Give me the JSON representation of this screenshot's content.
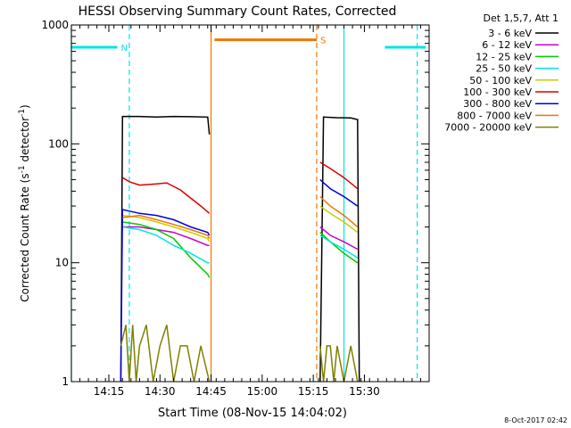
{
  "chart_data": {
    "type": "line",
    "title": "HESSI Observing Summary Count Rates, Corrected",
    "xlabel": "Start Time (08-Nov-15 14:04:02)",
    "ylabel_main": "Corrected Count Rate (s",
    "ylabel_sup1": "-1",
    "ylabel_mid": " detector",
    "ylabel_sup2": "-1",
    "ylabel_end": ")",
    "yscale": "log",
    "ylim": [
      1,
      1000
    ],
    "xlim_minutes": [
      0,
      105
    ],
    "x_ticks": [
      {
        "label": "14:15",
        "minute": 11
      },
      {
        "label": "14:30",
        "minute": 26
      },
      {
        "label": "14:45",
        "minute": 41
      },
      {
        "label": "15:00",
        "minute": 56
      },
      {
        "label": "15:15",
        "minute": 71
      },
      {
        "label": "15:30",
        "minute": 86
      }
    ],
    "y_ticks": [
      {
        "label": "1",
        "value": 1
      },
      {
        "label": "10",
        "value": 10
      },
      {
        "label": "100",
        "value": 100
      },
      {
        "label": "1000",
        "value": 1000
      }
    ],
    "legend_title": "Det 1,5,7, Att 1",
    "legend_placement": "right, outside plot",
    "series": [
      {
        "name": "3 - 6 keV",
        "color": "#000000",
        "segments": [
          {
            "x": [
              14.5,
              15,
              20,
              25,
              30,
              35,
              40,
              40.5
            ],
            "y": [
              1,
              170,
              170,
              168,
              170,
              169,
              168,
              120
            ]
          },
          {
            "x": [
              73,
              74,
              78,
              82,
              84,
              84.5
            ],
            "y": [
              1,
              168,
              166,
              165,
              160,
              1
            ]
          }
        ]
      },
      {
        "name": "6 - 12 keV",
        "color": "#cc00cc",
        "segments": [
          {
            "x": [
              15,
              20,
              25,
              30,
              35,
              40,
              40.5
            ],
            "y": [
              20,
              20,
              19,
              18,
              16,
              14,
              14
            ]
          },
          {
            "x": [
              73,
              76,
              80,
              84
            ],
            "y": [
              20,
              17,
              15,
              13
            ]
          }
        ]
      },
      {
        "name": "12 - 25 keV",
        "color": "#00cc00",
        "segments": [
          {
            "x": [
              15,
              20,
              25,
              30,
              35,
              40,
              40.5
            ],
            "y": [
              22,
              21,
              19,
              16,
              11,
              8,
              7.5
            ]
          },
          {
            "x": [
              73,
              76,
              80,
              84
            ],
            "y": [
              18,
              15,
              12,
              10
            ]
          }
        ]
      },
      {
        "name": "25 - 50 keV",
        "color": "#00e5e5",
        "segments": [
          {
            "x": [
              15,
              20,
              25,
              30,
              35,
              40,
              40.5
            ],
            "y": [
              20,
              19,
              17,
              14,
              12,
              10,
              10
            ]
          },
          {
            "x": [
              73,
              76,
              80,
              84
            ],
            "y": [
              17,
              15,
              13,
              11
            ]
          }
        ]
      },
      {
        "name": "50 - 100 keV",
        "color": "#cccc00",
        "segments": [
          {
            "x": [
              15,
              20,
              25,
              30,
              35,
              40,
              40.5
            ],
            "y": [
              25,
              24,
              22,
              20,
              18,
              16,
              15
            ]
          },
          {
            "x": [
              73,
              76,
              80,
              84
            ],
            "y": [
              30,
              26,
              22,
              18
            ]
          }
        ]
      },
      {
        "name": "100 - 300 keV",
        "color": "#dd0000",
        "segments": [
          {
            "x": [
              15,
              17,
              20,
              25,
              28,
              32,
              35,
              38,
              40.5
            ],
            "y": [
              52,
              48,
              45,
              46,
              47,
              41,
              35,
              30,
              26
            ]
          },
          {
            "x": [
              73,
              76,
              80,
              84
            ],
            "y": [
              70,
              62,
              52,
              42
            ]
          }
        ]
      },
      {
        "name": "300 - 800 keV",
        "color": "#0000dd",
        "segments": [
          {
            "x": [
              14.5,
              15,
              20,
              25,
              30,
              35,
              40,
              40.5
            ],
            "y": [
              1,
              28,
              26,
              25,
              23,
              20,
              18,
              17
            ]
          },
          {
            "x": [
              73,
              76,
              80,
              84
            ],
            "y": [
              50,
              42,
              36,
              30
            ]
          }
        ]
      },
      {
        "name": "800 - 7000 keV",
        "color": "#ee7700",
        "segments": [
          {
            "x": [
              15,
              20,
              25,
              30,
              35,
              40,
              40.5
            ],
            "y": [
              24,
              25,
              23,
              21,
              19,
              17,
              16
            ]
          },
          {
            "x": [
              73,
              76,
              80,
              84
            ],
            "y": [
              36,
              30,
              25,
              20
            ]
          }
        ]
      },
      {
        "name": "7000 - 20000 keV",
        "color": "#808000",
        "segments": [
          {
            "x": [
              14.5,
              16,
              17,
              18,
              19,
              20,
              22,
              24,
              26,
              28,
              30,
              32,
              34,
              36,
              38,
              40.5
            ],
            "y": [
              2,
              3,
              1,
              3,
              1,
              2,
              3,
              1,
              2,
              3,
              1,
              2,
              2,
              1,
              2,
              1
            ]
          },
          {
            "x": [
              73,
              74,
              75,
              76,
              77,
              78,
              80,
              82,
              84
            ],
            "y": [
              2,
              1,
              2,
              2,
              1,
              2,
              1,
              2,
              1
            ]
          }
        ]
      }
    ],
    "flag_bars": [
      {
        "label": "N",
        "color": "#00e5e5",
        "x": [
          0,
          13.5
        ],
        "y": 650
      },
      {
        "label": "",
        "color": "#00e5e5",
        "x": [
          92,
          104
        ],
        "y": 650
      },
      {
        "label": "S",
        "color": "#ee7700",
        "x": [
          42,
          72
        ],
        "y": 750
      }
    ],
    "vlines": [
      {
        "x": 0,
        "color": "#00e5e5",
        "style": "solid"
      },
      {
        "x": 17,
        "color": "#00e5e5",
        "style": "dashed"
      },
      {
        "x": 41,
        "color": "#ee7700",
        "style": "solid"
      },
      {
        "x": 72,
        "color": "#ee7700",
        "style": "dashed"
      },
      {
        "x": 80,
        "color": "#00e5e5",
        "style": "solid"
      },
      {
        "x": 101.5,
        "color": "#00e5e5",
        "style": "dashed"
      }
    ],
    "timestamp": "8-Oct-2017 02:42"
  }
}
